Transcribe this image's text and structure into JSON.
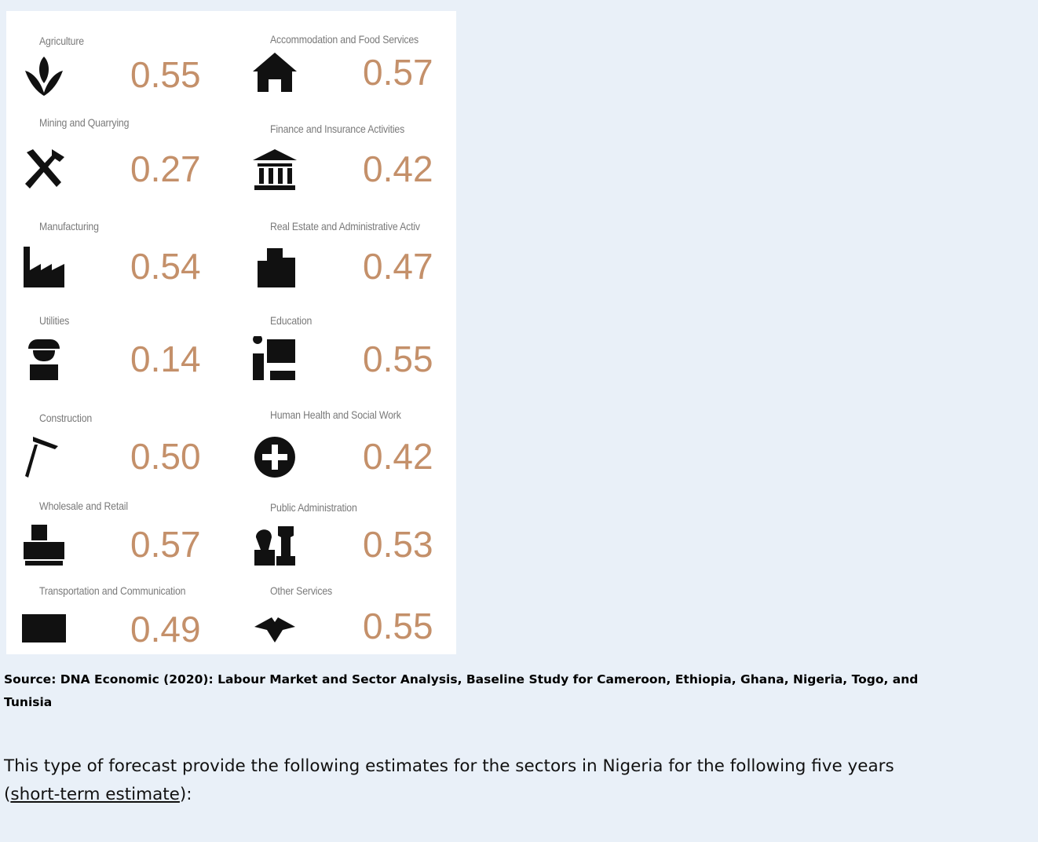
{
  "sectors": [
    {
      "name": "Agriculture",
      "value": "0.55"
    },
    {
      "name": "Accommodation and Food Services",
      "value": "0.57"
    },
    {
      "name": "Mining and Quarrying",
      "value": "0.27"
    },
    {
      "name": "Finance and Insurance Activities",
      "value": "0.42"
    },
    {
      "name": "Manufacturing",
      "value": "0.54"
    },
    {
      "name": "Real Estate and Administrative Activ",
      "value": "0.47"
    },
    {
      "name": "Utilities",
      "value": "0.14"
    },
    {
      "name": "Education",
      "value": "0.55"
    },
    {
      "name": "Construction",
      "value": "0.50"
    },
    {
      "name": "Human Health and Social Work",
      "value": "0.42"
    },
    {
      "name": "Wholesale and Retail",
      "value": "0.57"
    },
    {
      "name": "Public Administration",
      "value": "0.53"
    },
    {
      "name": "Transportation and Communication",
      "value": "0.49"
    },
    {
      "name": "Other Services",
      "value": "0.55"
    }
  ],
  "source": {
    "line1": "Source: DNA Economic (2020): Labour Market and Sector Analysis, Baseline Study for Cameroon, Ethiopia, Ghana, Nigeria, Togo, and",
    "line2": "Tunisia"
  },
  "paragraph": {
    "before": "This type of forecast provide the following estimates for the sectors in Nigeria for the following five years",
    "open": "(",
    "link": "short-term estimate",
    "after": "):"
  }
}
